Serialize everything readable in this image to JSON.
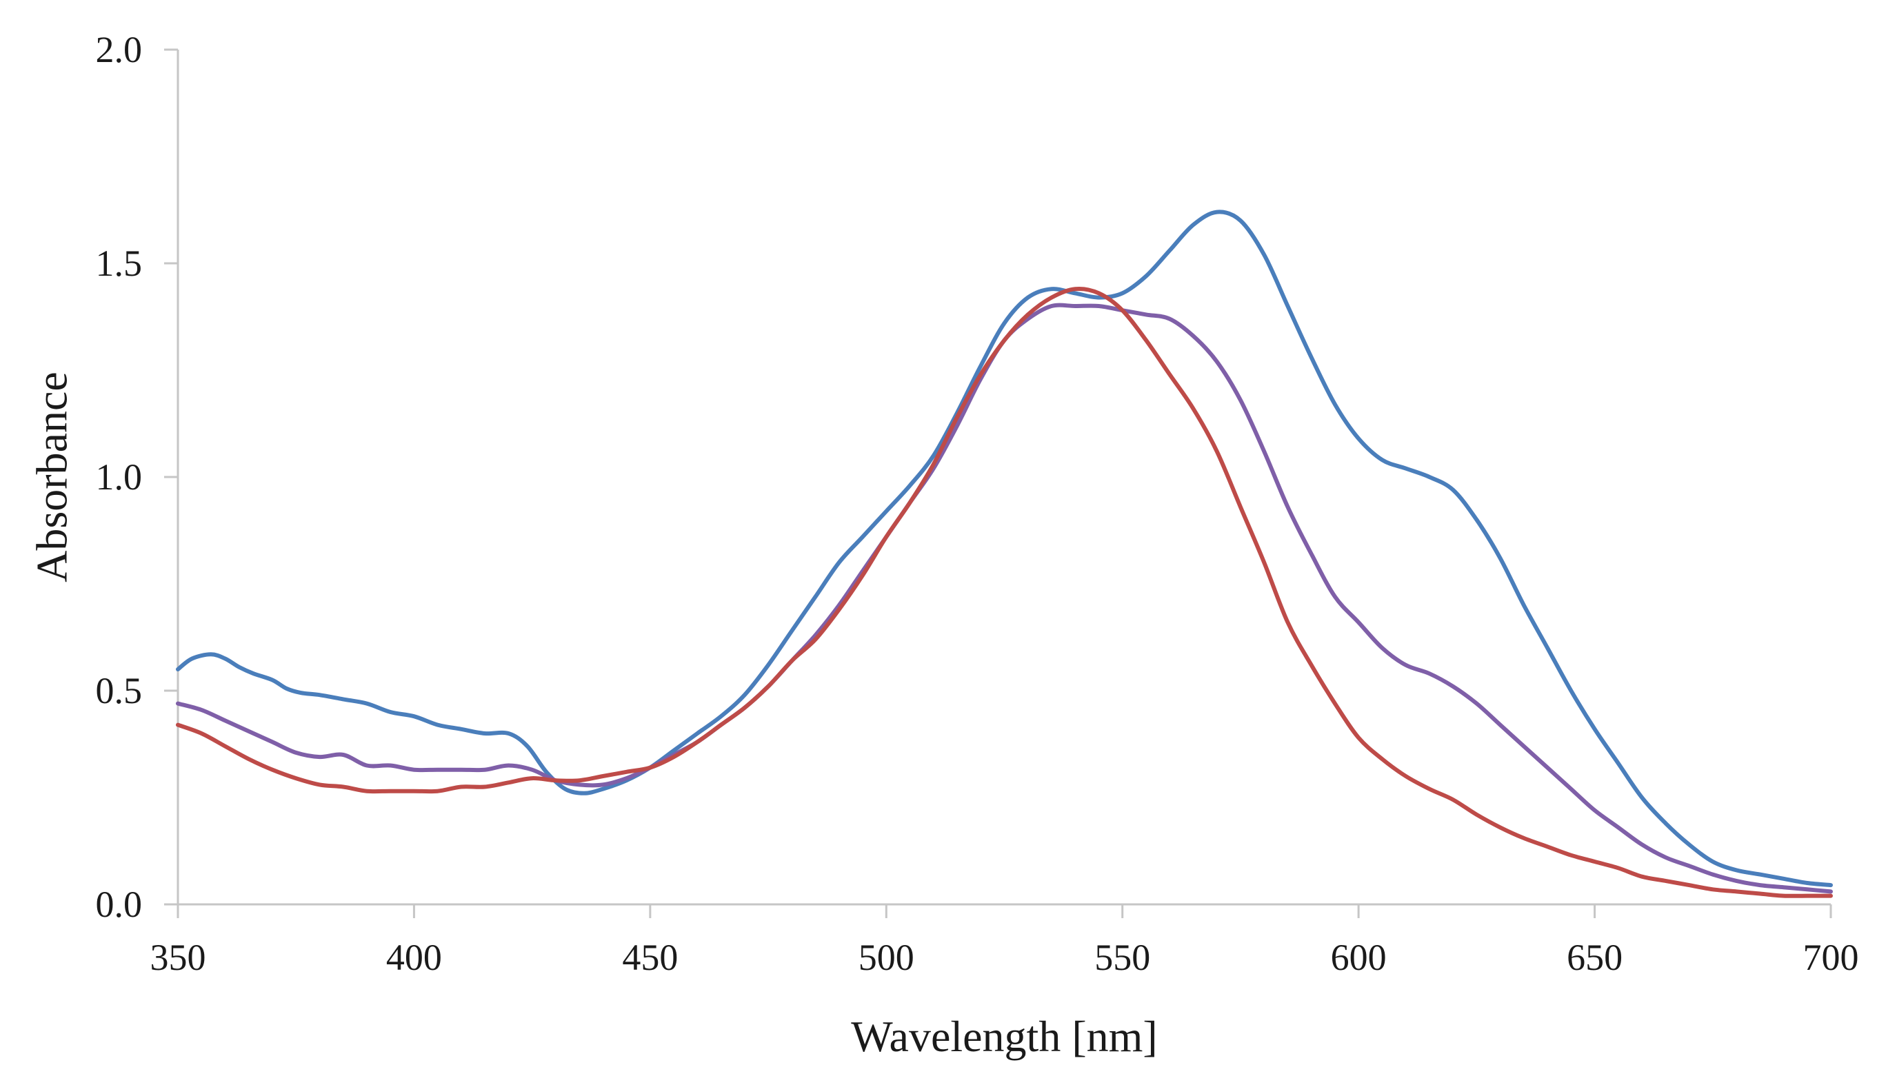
{
  "chart_data": {
    "type": "line",
    "title": "",
    "xlabel": "Wavelength [nm]",
    "ylabel": "Absorbance",
    "xlim": [
      350,
      700
    ],
    "ylim": [
      0,
      2
    ],
    "x_ticks": [
      350,
      400,
      450,
      500,
      550,
      600,
      650,
      700
    ],
    "x_tick_labels": [
      "350",
      "400",
      "450",
      "500",
      "550",
      "600",
      "650",
      "700"
    ],
    "y_ticks": [
      0,
      0.5,
      1,
      1.5,
      2
    ],
    "y_tick_labels": [
      "0.0",
      "0.5",
      "1.0",
      "1.5",
      "2.0"
    ],
    "grid": false,
    "legend": "none",
    "series": [
      {
        "name": "blue",
        "color": "#4a7ebb",
        "x": [
          350,
          353,
          357,
          360,
          363,
          366,
          370,
          373,
          376,
          380,
          385,
          390,
          395,
          400,
          405,
          410,
          415,
          420,
          424,
          428,
          432,
          436,
          440,
          445,
          450,
          455,
          460,
          465,
          470,
          475,
          480,
          485,
          490,
          495,
          500,
          505,
          510,
          515,
          520,
          525,
          530,
          535,
          540,
          545,
          550,
          555,
          560,
          565,
          570,
          575,
          580,
          585,
          590,
          595,
          600,
          605,
          610,
          615,
          620,
          625,
          630,
          635,
          640,
          645,
          650,
          655,
          660,
          665,
          670,
          675,
          680,
          685,
          690,
          695,
          700
        ],
        "values": [
          0.55,
          0.575,
          0.585,
          0.575,
          0.555,
          0.54,
          0.525,
          0.505,
          0.495,
          0.49,
          0.48,
          0.47,
          0.45,
          0.44,
          0.42,
          0.41,
          0.4,
          0.4,
          0.37,
          0.31,
          0.27,
          0.26,
          0.27,
          0.29,
          0.32,
          0.36,
          0.4,
          0.44,
          0.49,
          0.56,
          0.64,
          0.72,
          0.8,
          0.86,
          0.92,
          0.98,
          1.05,
          1.15,
          1.26,
          1.36,
          1.42,
          1.44,
          1.43,
          1.42,
          1.43,
          1.47,
          1.53,
          1.59,
          1.62,
          1.6,
          1.52,
          1.4,
          1.28,
          1.17,
          1.09,
          1.04,
          1.02,
          1.0,
          0.97,
          0.9,
          0.81,
          0.7,
          0.6,
          0.5,
          0.41,
          0.33,
          0.25,
          0.19,
          0.14,
          0.1,
          0.08,
          0.07,
          0.06,
          0.05,
          0.045
        ]
      },
      {
        "name": "purple",
        "color": "#7f5fa8",
        "x": [
          350,
          355,
          360,
          365,
          370,
          375,
          380,
          385,
          390,
          395,
          400,
          405,
          410,
          415,
          420,
          425,
          430,
          435,
          440,
          445,
          450,
          455,
          460,
          465,
          470,
          475,
          480,
          485,
          490,
          495,
          500,
          505,
          510,
          515,
          520,
          525,
          530,
          535,
          540,
          545,
          550,
          555,
          560,
          565,
          570,
          575,
          580,
          585,
          590,
          595,
          600,
          605,
          610,
          615,
          620,
          625,
          630,
          635,
          640,
          645,
          650,
          655,
          660,
          665,
          670,
          675,
          680,
          685,
          690,
          695,
          700
        ],
        "values": [
          0.47,
          0.455,
          0.43,
          0.405,
          0.38,
          0.355,
          0.345,
          0.35,
          0.325,
          0.325,
          0.315,
          0.315,
          0.315,
          0.315,
          0.325,
          0.315,
          0.29,
          0.28,
          0.28,
          0.295,
          0.32,
          0.35,
          0.38,
          0.42,
          0.46,
          0.51,
          0.57,
          0.63,
          0.7,
          0.78,
          0.86,
          0.94,
          1.02,
          1.12,
          1.23,
          1.32,
          1.37,
          1.4,
          1.4,
          1.4,
          1.39,
          1.38,
          1.37,
          1.33,
          1.27,
          1.18,
          1.06,
          0.93,
          0.82,
          0.72,
          0.66,
          0.6,
          0.56,
          0.54,
          0.51,
          0.47,
          0.42,
          0.37,
          0.32,
          0.27,
          0.22,
          0.18,
          0.14,
          0.11,
          0.09,
          0.07,
          0.055,
          0.045,
          0.04,
          0.035,
          0.03
        ]
      },
      {
        "name": "red",
        "color": "#be4b48",
        "x": [
          350,
          355,
          360,
          365,
          370,
          375,
          380,
          385,
          390,
          395,
          400,
          405,
          410,
          415,
          420,
          425,
          430,
          435,
          440,
          445,
          450,
          455,
          460,
          465,
          470,
          475,
          480,
          485,
          490,
          495,
          500,
          505,
          510,
          515,
          520,
          525,
          530,
          535,
          540,
          545,
          550,
          555,
          560,
          565,
          570,
          575,
          580,
          585,
          590,
          595,
          600,
          605,
          610,
          615,
          620,
          625,
          630,
          635,
          640,
          645,
          650,
          655,
          660,
          665,
          670,
          675,
          680,
          685,
          690,
          695,
          700
        ],
        "values": [
          0.42,
          0.4,
          0.37,
          0.34,
          0.315,
          0.295,
          0.28,
          0.275,
          0.265,
          0.265,
          0.265,
          0.265,
          0.275,
          0.275,
          0.285,
          0.295,
          0.29,
          0.29,
          0.3,
          0.31,
          0.32,
          0.345,
          0.38,
          0.42,
          0.46,
          0.51,
          0.57,
          0.62,
          0.69,
          0.77,
          0.86,
          0.94,
          1.03,
          1.14,
          1.24,
          1.32,
          1.38,
          1.42,
          1.44,
          1.43,
          1.39,
          1.32,
          1.24,
          1.16,
          1.06,
          0.93,
          0.8,
          0.66,
          0.56,
          0.47,
          0.39,
          0.34,
          0.3,
          0.27,
          0.245,
          0.21,
          0.18,
          0.155,
          0.135,
          0.115,
          0.1,
          0.085,
          0.065,
          0.055,
          0.045,
          0.035,
          0.03,
          0.025,
          0.02,
          0.02,
          0.02
        ]
      }
    ]
  }
}
